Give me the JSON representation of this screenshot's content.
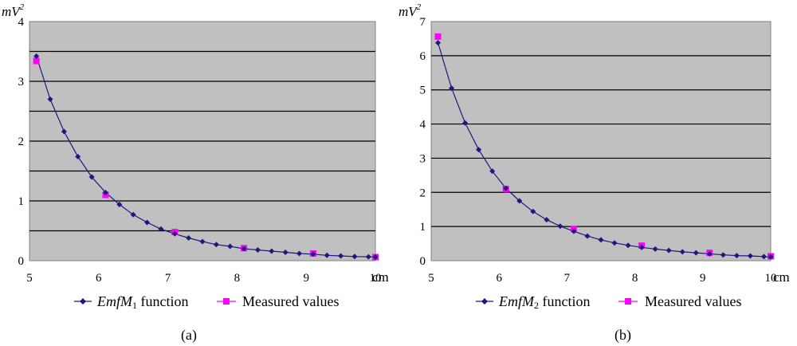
{
  "colors": {
    "plot_background": "#c0c0c0",
    "grid": "#000000",
    "function_series": "#1a1a7e",
    "measured_series": "#ff00ff"
  },
  "chart_data": [
    {
      "type": "line",
      "caption": "(a)",
      "xlabel": "cm",
      "ylabel": "mV",
      "ylabel_superscript": "2",
      "xlim": [
        5,
        10
      ],
      "ylim": [
        0,
        4
      ],
      "x_ticks": [
        "5",
        "6",
        "7",
        "8",
        "9",
        "10"
      ],
      "y_ticks": [
        "0",
        "1",
        "2",
        "3",
        "4"
      ],
      "grid_step": 0.5,
      "legend": [
        {
          "name_italic": "EmfM",
          "name_sub": "1",
          "name_rest": " function",
          "marker": "diamond"
        },
        {
          "name": "Measured values",
          "marker": "square"
        }
      ],
      "series": [
        {
          "name": "EmfM1 function",
          "marker": "diamond",
          "x": [
            5.1,
            5.3,
            5.5,
            5.7,
            5.9,
            6.1,
            6.3,
            6.5,
            6.7,
            6.9,
            7.1,
            7.3,
            7.5,
            7.7,
            7.9,
            8.1,
            8.3,
            8.5,
            8.7,
            8.9,
            9.1,
            9.3,
            9.5,
            9.7,
            9.9,
            10.0
          ],
          "y": [
            3.42,
            2.7,
            2.16,
            1.74,
            1.4,
            1.14,
            0.94,
            0.77,
            0.64,
            0.53,
            0.45,
            0.38,
            0.32,
            0.27,
            0.24,
            0.2,
            0.18,
            0.16,
            0.14,
            0.12,
            0.11,
            0.09,
            0.08,
            0.07,
            0.065,
            0.06
          ]
        },
        {
          "name": "Measured values",
          "marker": "square",
          "x": [
            5.1,
            6.1,
            7.1,
            8.1,
            9.1,
            10.0
          ],
          "y": [
            3.34,
            1.1,
            0.48,
            0.21,
            0.12,
            0.06
          ]
        }
      ]
    },
    {
      "type": "line",
      "caption": "(b)",
      "xlabel": "cm",
      "ylabel": "mV",
      "ylabel_superscript": "2",
      "xlim": [
        5,
        10
      ],
      "ylim": [
        0,
        7
      ],
      "x_ticks": [
        "5",
        "6",
        "7",
        "8",
        "9",
        "10"
      ],
      "y_ticks": [
        "0",
        "1",
        "2",
        "3",
        "4",
        "5",
        "6",
        "7"
      ],
      "grid_step": 1,
      "legend": [
        {
          "name_italic": "EmfM",
          "name_sub": "2",
          "name_rest": " function",
          "marker": "diamond"
        },
        {
          "name": "Measured values",
          "marker": "square"
        }
      ],
      "series": [
        {
          "name": "EmfM2 function",
          "marker": "diamond",
          "x": [
            5.1,
            5.3,
            5.5,
            5.7,
            5.9,
            6.1,
            6.3,
            6.5,
            6.7,
            6.9,
            7.1,
            7.3,
            7.5,
            7.7,
            7.9,
            8.1,
            8.3,
            8.5,
            8.7,
            8.9,
            9.1,
            9.3,
            9.5,
            9.7,
            9.9,
            10.0
          ],
          "y": [
            6.38,
            5.05,
            4.03,
            3.25,
            2.62,
            2.12,
            1.75,
            1.44,
            1.2,
            1.01,
            0.86,
            0.72,
            0.61,
            0.52,
            0.45,
            0.39,
            0.34,
            0.3,
            0.26,
            0.23,
            0.2,
            0.17,
            0.15,
            0.14,
            0.12,
            0.11
          ]
        },
        {
          "name": "Measured values",
          "marker": "square",
          "x": [
            5.1,
            6.1,
            7.1,
            8.1,
            9.1,
            10.0
          ],
          "y": [
            6.56,
            2.1,
            0.93,
            0.44,
            0.23,
            0.13
          ]
        }
      ]
    }
  ]
}
